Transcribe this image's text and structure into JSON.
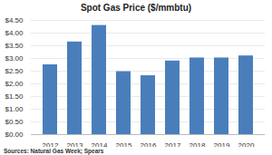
{
  "chart_data": {
    "type": "bar",
    "title": "Spot Gas Price ($/mmbtu)",
    "source": "Sources: Natural Gas Week; Spears",
    "categories": [
      "2012",
      "2013",
      "2014",
      "2015",
      "2016",
      "2017",
      "2018",
      "2019",
      "2020"
    ],
    "values": [
      2.75,
      3.65,
      4.3,
      2.48,
      2.32,
      2.9,
      3.02,
      3.02,
      3.1
    ],
    "color": "#4a7ebb",
    "ylim": [
      0,
      4.5
    ],
    "yticks": [
      {
        "value": 0,
        "label": "$0.00"
      },
      {
        "value": 0.5,
        "label": "$0.50"
      },
      {
        "value": 1,
        "label": "$1.00"
      },
      {
        "value": 1.5,
        "label": "$1.50"
      },
      {
        "value": 2,
        "label": "$2.00"
      },
      {
        "value": 2.5,
        "label": "$2.50"
      },
      {
        "value": 3,
        "label": "$3.00"
      },
      {
        "value": 3.5,
        "label": "$3.50"
      },
      {
        "value": 4,
        "label": "$4.00"
      },
      {
        "value": 4.5,
        "label": "$4.50"
      }
    ],
    "grid": true
  }
}
